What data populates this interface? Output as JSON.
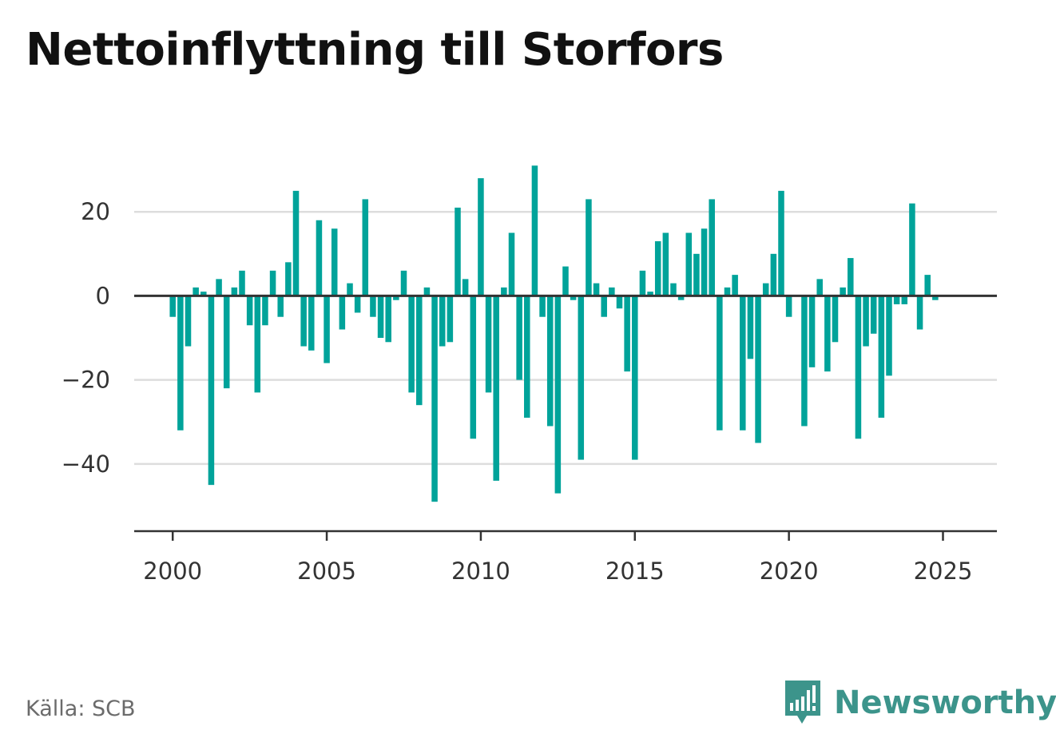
{
  "header": {
    "title": "Nettoinflyttning till Storfors"
  },
  "footer": {
    "source": "Källa: SCB",
    "brand": "Newsworthy"
  },
  "colors": {
    "bar": "#00a39a",
    "brand": "#3c948b",
    "grid": "#dddddd",
    "axis": "#333333"
  },
  "chart_data": {
    "type": "bar",
    "title": "Nettoinflyttning till Storfors",
    "xlabel": "",
    "ylabel": "",
    "x_ticks": [
      2000,
      2005,
      2010,
      2015,
      2020,
      2025
    ],
    "y_ticks": [
      -40,
      -20,
      0,
      20
    ],
    "y_tick_labels": [
      "−40",
      "−20",
      "0",
      "20"
    ],
    "xlim": [
      1998.75,
      2026.75
    ],
    "ylim": [
      -56,
      40
    ],
    "grid": "horizontal",
    "period": "quarterly",
    "start_period": "2000 Q1",
    "values": [
      -5,
      -32,
      -12,
      2,
      1,
      -45,
      4,
      -22,
      2,
      6,
      -7,
      -23,
      -7,
      6,
      -5,
      8,
      25,
      -12,
      -13,
      18,
      -16,
      16,
      -8,
      3,
      -4,
      23,
      -5,
      -10,
      -11,
      -1,
      6,
      -23,
      -26,
      2,
      -49,
      -12,
      -11,
      21,
      4,
      -34,
      28,
      -23,
      -44,
      2,
      15,
      -20,
      -29,
      31,
      -5,
      -31,
      -47,
      7,
      -1,
      -39,
      23,
      3,
      -5,
      2,
      -3,
      -18,
      -39,
      6,
      1,
      13,
      15,
      3,
      -1,
      15,
      10,
      16,
      23,
      -32,
      2,
      5,
      -32,
      -15,
      -35,
      3,
      10,
      25,
      -5,
      0,
      -31,
      -17,
      4,
      -18,
      -11,
      2,
      9,
      -34,
      -12,
      -9,
      -29,
      -19,
      -2,
      -2,
      22,
      -8,
      5,
      -1
    ]
  }
}
